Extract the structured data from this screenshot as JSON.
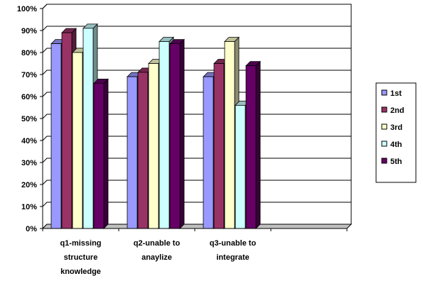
{
  "chart_data": {
    "type": "bar",
    "title": "",
    "xlabel": "",
    "ylabel": "",
    "ylim": [
      0,
      100
    ],
    "y_ticks": [
      "0%",
      "10%",
      "20%",
      "30%",
      "40%",
      "50%",
      "60%",
      "70%",
      "80%",
      "90%",
      "100%"
    ],
    "y_tick_values": [
      0,
      10,
      20,
      30,
      40,
      50,
      60,
      70,
      80,
      90,
      100
    ],
    "grid": true,
    "legend_position": "right",
    "style": "3d-clustered",
    "categories": [
      [
        "q1-missing",
        "structure",
        "knowledge"
      ],
      [
        "q2-unable to",
        "anaylize"
      ],
      [
        "q3-unable to",
        "integrate"
      ],
      []
    ],
    "series": [
      {
        "name": "1st",
        "color": "#9999ff",
        "values": [
          84,
          69,
          69,
          null
        ]
      },
      {
        "name": "2nd",
        "color": "#993366",
        "values": [
          89,
          71,
          75,
          null
        ]
      },
      {
        "name": "3rd",
        "color": "#ffffcc",
        "values": [
          80,
          75,
          85,
          null
        ]
      },
      {
        "name": "4th",
        "color": "#ccffff",
        "values": [
          91,
          85,
          56,
          null
        ]
      },
      {
        "name": "5th",
        "color": "#660066",
        "values": [
          66,
          84,
          74,
          null
        ]
      }
    ]
  }
}
